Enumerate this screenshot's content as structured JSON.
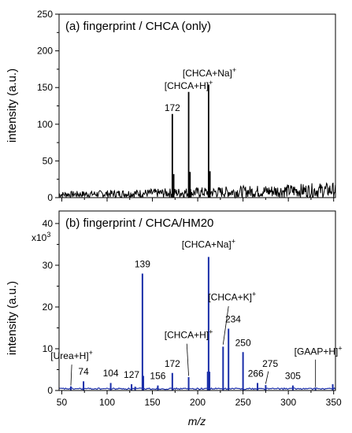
{
  "chart_data": [
    {
      "type": "line",
      "title": "(a) fingerprint / CHCA (only)",
      "ylabel": "intensity (a.u.)",
      "xlim": [
        47,
        352
      ],
      "ylim": [
        0,
        250
      ],
      "yticks": [
        0,
        50,
        100,
        150,
        200,
        250
      ],
      "color": "#000000",
      "noise_level": [
        4,
        16
      ],
      "peaks": [
        {
          "x": 172,
          "y": 114
        },
        {
          "x": 190,
          "y": 144
        },
        {
          "x": 212,
          "y": 154
        },
        {
          "x": 173.5,
          "y": 32
        },
        {
          "x": 191.5,
          "y": 35
        },
        {
          "x": 213.5,
          "y": 36
        }
      ],
      "annotations": [
        {
          "text": "172",
          "x": 172,
          "y": 118
        },
        {
          "text": "[CHCA+H]",
          "sup": "+",
          "x": 190,
          "y": 148
        },
        {
          "text": "[CHCA+Na]",
          "sup": "+",
          "x": 213,
          "y": 165
        }
      ]
    },
    {
      "type": "line",
      "title": "(b) fingerprint / CHCA/HM20",
      "ylabel": "intensity (a.u.)",
      "yscale_label": "x10",
      "yscale_exp": "3",
      "xlabel": "m/z",
      "xlim": [
        47,
        352
      ],
      "xticks": [
        50,
        100,
        150,
        200,
        250,
        300,
        350
      ],
      "ylim": [
        0,
        43
      ],
      "yticks": [
        0,
        10,
        20,
        30,
        40
      ],
      "color": "#1a2ea8",
      "peaks": [
        {
          "x": 60,
          "y": 1.0
        },
        {
          "x": 74,
          "y": 2.2
        },
        {
          "x": 104,
          "y": 1.8
        },
        {
          "x": 127,
          "y": 1.5
        },
        {
          "x": 131,
          "y": 0.9
        },
        {
          "x": 139,
          "y": 28
        },
        {
          "x": 140,
          "y": 3.5
        },
        {
          "x": 156,
          "y": 1.2
        },
        {
          "x": 172,
          "y": 4.2
        },
        {
          "x": 190,
          "y": 3.2
        },
        {
          "x": 212,
          "y": 32
        },
        {
          "x": 211,
          "y": 4.5
        },
        {
          "x": 213,
          "y": 4.5
        },
        {
          "x": 228,
          "y": 10.5
        },
        {
          "x": 234,
          "y": 14.8
        },
        {
          "x": 250,
          "y": 9.2
        },
        {
          "x": 266,
          "y": 1.8
        },
        {
          "x": 275,
          "y": 1.3
        },
        {
          "x": 305,
          "y": 1.2
        },
        {
          "x": 330,
          "y": 0.6
        },
        {
          "x": 349,
          "y": 1.5
        }
      ],
      "annotations": [
        {
          "text": "[Urea+H]",
          "sup": "+",
          "x": 61,
          "y": 7.5
        },
        {
          "text": "74",
          "x": 74,
          "y": 3.8
        },
        {
          "text": "104",
          "x": 104,
          "y": 3.4
        },
        {
          "text": "127",
          "x": 127,
          "y": 3.0
        },
        {
          "text": "139",
          "x": 139,
          "y": 29.5
        },
        {
          "text": "156",
          "x": 156,
          "y": 2.7
        },
        {
          "text": "172",
          "x": 172,
          "y": 5.7
        },
        {
          "text": "[CHCA+H]",
          "sup": "+",
          "x": 190,
          "y": 12.5
        },
        {
          "text": "[CHCA+Na]",
          "sup": "+",
          "x": 212,
          "y": 34.2
        },
        {
          "text": "[CHCA+K]",
          "sup": "+",
          "x": 238,
          "y": 21.6
        },
        {
          "text": "234",
          "x": 239,
          "y": 16.3
        },
        {
          "text": "250",
          "x": 250,
          "y": 10.7
        },
        {
          "text": "266",
          "x": 264,
          "y": 3.3
        },
        {
          "text": "275",
          "x": 280,
          "y": 5.7
        },
        {
          "text": "305",
          "x": 305,
          "y": 2.7
        },
        {
          "text": "[GAAP+H]",
          "sup": "+",
          "x": 333,
          "y": 8.6
        }
      ]
    }
  ]
}
